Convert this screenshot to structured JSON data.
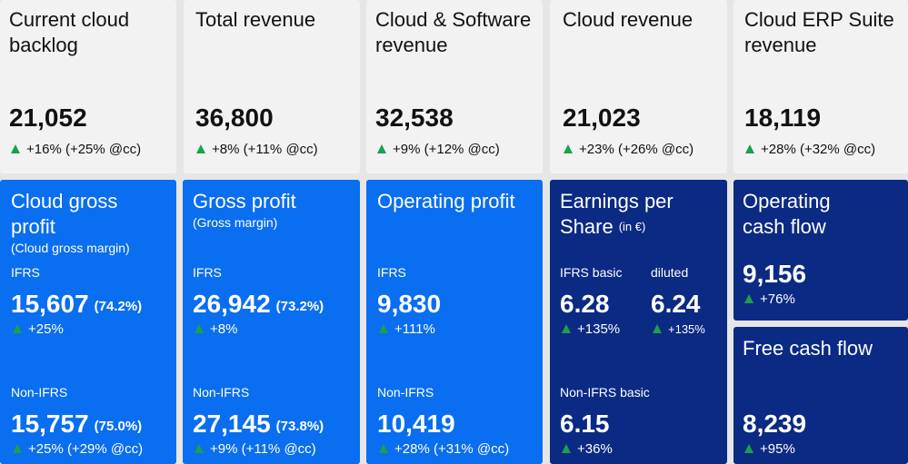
{
  "top": [
    {
      "title": "Current cloud backlog",
      "value": "21,052",
      "change": "+16% (+25% @cc)"
    },
    {
      "title": "Total revenue",
      "value": "36,800",
      "change": "+8% (+11% @cc)"
    },
    {
      "title": "Cloud & Software revenue",
      "value": "32,538",
      "change": "+9% (+12% @cc)"
    },
    {
      "title": "Cloud revenue",
      "value": "21,023",
      "change": "+23% (+26% @cc)"
    },
    {
      "title": "Cloud ERP Suite revenue",
      "value": "18,119",
      "change": "+28% (+32% @cc)"
    }
  ],
  "cloud_gross_profit": {
    "title": "Cloud gross profit",
    "subtitle": "(Cloud gross margin)",
    "ifrs_label": "IFRS",
    "ifrs_value": "15,607",
    "ifrs_pct": "(74.2%)",
    "ifrs_change": "+25%",
    "nonifrs_label": "Non-IFRS",
    "nonifrs_value": "15,757",
    "nonifrs_pct": "(75.0%)",
    "nonifrs_change": "+25% (+29% @cc)"
  },
  "gross_profit": {
    "title": "Gross profit",
    "subtitle": "(Gross margin)",
    "ifrs_label": "IFRS",
    "ifrs_value": "26,942",
    "ifrs_pct": "(73.2%)",
    "ifrs_change": "+8%",
    "nonifrs_label": "Non-IFRS",
    "nonifrs_value": "27,145",
    "nonifrs_pct": "(73.8%)",
    "nonifrs_change": "+9% (+11% @cc)"
  },
  "operating_profit": {
    "title": "Operating profit",
    "ifrs_label": "IFRS",
    "ifrs_value": "9,830",
    "ifrs_change": "+111%",
    "nonifrs_label": "Non-IFRS",
    "nonifrs_value": "10,419",
    "nonifrs_change": "+28% (+31% @cc)"
  },
  "eps": {
    "title_line1": "Earnings per",
    "title_line2": "Share",
    "unit": "(in €)",
    "basic_label": "IFRS basic",
    "basic_value": "6.28",
    "basic_change": "+135%",
    "diluted_label": "diluted",
    "diluted_value": "6.24",
    "diluted_change": "+135%",
    "nonifrs_label": "Non-IFRS basic",
    "nonifrs_value": "6.15",
    "nonifrs_change": "+36%"
  },
  "operating_cash_flow": {
    "title": "Operating cash flow",
    "value": "9,156",
    "change": "+76%"
  },
  "free_cash_flow": {
    "title": "Free cash flow",
    "value": "8,239",
    "change": "+95%"
  }
}
